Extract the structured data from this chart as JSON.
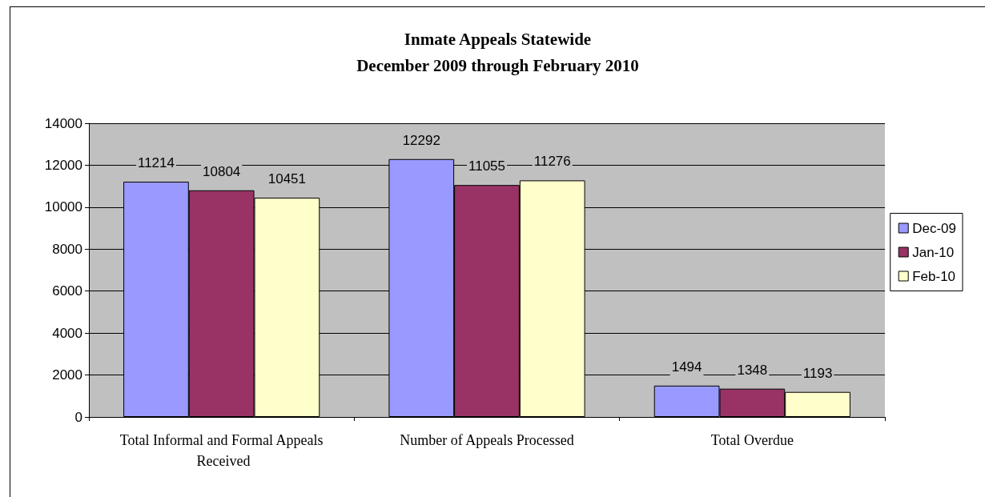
{
  "chart_data": {
    "type": "bar",
    "title": "Inmate Appeals Statewide",
    "subtitle": "December 2009 through February 2010",
    "categories": [
      "Total Informal and Formal Appeals Received",
      "Number of Appeals Processed",
      "Total Overdue"
    ],
    "series": [
      {
        "name": "Dec-09",
        "color": "#9999ff",
        "values": [
          11214,
          12292,
          1494
        ]
      },
      {
        "name": "Jan-10",
        "color": "#993366",
        "values": [
          10804,
          11055,
          1348
        ]
      },
      {
        "name": "Feb-10",
        "color": "#ffffcc",
        "values": [
          10451,
          11276,
          1193
        ]
      }
    ],
    "ylim": [
      0,
      14000
    ],
    "yticks": [
      0,
      2000,
      4000,
      6000,
      8000,
      10000,
      12000,
      14000
    ],
    "grid": "y",
    "legend": "right",
    "data_labels": true
  }
}
